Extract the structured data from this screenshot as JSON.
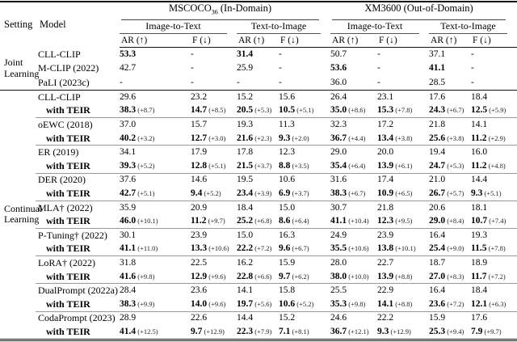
{
  "colors": {
    "text": "#000000",
    "rule_dark": "#111111",
    "separator_gray": "#9a9a9a"
  },
  "labels": {
    "with_teir": "with TEIR"
  },
  "header": {
    "setting": "Setting",
    "model": "Model",
    "groups": [
      {
        "name": "MSCOCO",
        "sub": "36",
        "rest": " (In-Domain)"
      },
      {
        "name": "XM3600",
        "sub": "",
        "rest": " (Out-of-Domain)"
      }
    ],
    "directions": [
      "Image-to-Text",
      "Text-to-Image",
      "Image-to-Text",
      "Text-to-Image"
    ],
    "metric_ar": "AR (↑)",
    "metric_f": "F (↓)"
  },
  "sections": [
    {
      "setting_lines": [
        "Joint",
        "Learning"
      ],
      "type": "simple",
      "rows": [
        {
          "model": "CLL-CLIP",
          "values": [
            "53.3",
            "-",
            "31.4",
            "-",
            "50.7",
            "-",
            "37.1",
            "-"
          ],
          "bold": [
            1,
            0,
            1,
            0,
            0,
            0,
            0,
            0
          ]
        },
        {
          "model": "M-CLIP (2022)",
          "values": [
            "42.7",
            "-",
            "25.9",
            "-",
            "53.6",
            "-",
            "41.1",
            "-"
          ],
          "bold": [
            0,
            0,
            0,
            0,
            1,
            0,
            1,
            0
          ]
        },
        {
          "model": "PaLI (2023c)",
          "values": [
            "-",
            "-",
            "-",
            "-",
            "36.0",
            "-",
            "28.5",
            "-"
          ],
          "bold": [
            0,
            0,
            0,
            0,
            0,
            0,
            0,
            0
          ]
        }
      ]
    },
    {
      "setting_lines": [
        "Continual",
        "Learning"
      ],
      "type": "pairs",
      "pairs": [
        {
          "model": "CLL-CLIP",
          "base": [
            "29.6",
            "23.2",
            "15.2",
            "15.6",
            "26.4",
            "23.1",
            "17.6",
            "18.4"
          ],
          "teir": [
            "38.3",
            "14.7",
            "20.5",
            "10.5",
            "35.0",
            "15.3",
            "24.3",
            "12.5"
          ],
          "delta": [
            "(+8.7)",
            "(+8.5)",
            "(+5.3)",
            "(+5.1)",
            "(+8.6)",
            "(+7.8)",
            "(+6.7)",
            "(+5.9)"
          ]
        },
        {
          "model": "oEWC (2018)",
          "base": [
            "37.0",
            "15.7",
            "19.3",
            "11.3",
            "32.3",
            "17.2",
            "21.8",
            "14.1"
          ],
          "teir": [
            "40.2",
            "12.7",
            "21.6",
            "9.3",
            "36.7",
            "13.4",
            "25.6",
            "11.2"
          ],
          "delta": [
            "(+3.2)",
            "(+3.0)",
            "(+2.3)",
            "(+2.0)",
            "(+4.4)",
            "(+3.8)",
            "(+3.8)",
            "(+2.9)"
          ]
        },
        {
          "model": "ER (2019)",
          "base": [
            "34.1",
            "17.9",
            "17.8",
            "12.3",
            "29.0",
            "20.0",
            "19.4",
            "16.0"
          ],
          "teir": [
            "39.3",
            "12.8",
            "21.5",
            "8.8",
            "35.4",
            "13.9",
            "24.7",
            "11.2"
          ],
          "delta": [
            "(+5.2)",
            "(+5.1)",
            "(+3.7)",
            "(+3.5)",
            "(+6.4)",
            "(+6.1)",
            "(+5.3)",
            "(+4.8)"
          ]
        },
        {
          "model": "DER (2020)",
          "base": [
            "37.6",
            "14.6",
            "19.5",
            "10.6",
            "31.6",
            "17.4",
            "21.0",
            "14.4"
          ],
          "teir": [
            "42.7",
            "9.4",
            "23.4",
            "6.9",
            "38.3",
            "10.9",
            "26.7",
            "9.3"
          ],
          "delta": [
            "(+5.1)",
            "(+5.2)",
            "(+3.9)",
            "(+3.7)",
            "(+6.7)",
            "(+6.5)",
            "(+5.7)",
            "(+5.1)"
          ]
        },
        {
          "model": "MLA† (2022)",
          "base": [
            "35.9",
            "20.9",
            "18.4",
            "15.0",
            "30.7",
            "21.8",
            "20.6",
            "18.1"
          ],
          "teir": [
            "46.0",
            "11.2",
            "25.2",
            "8.6",
            "41.1",
            "12.3",
            "29.0",
            "10.7"
          ],
          "delta": [
            "(+10.1)",
            "(+9.7)",
            "(+6.8)",
            "(+6.4)",
            "(+10.4)",
            "(+9.5)",
            "(+8.4)",
            "(+7.4)"
          ]
        },
        {
          "model": "P-Tuning† (2022)",
          "base": [
            "30.1",
            "23.9",
            "15.0",
            "16.3",
            "24.9",
            "23.9",
            "16.4",
            "19.3"
          ],
          "teir": [
            "41.1",
            "13.3",
            "22.2",
            "9.6",
            "35.5",
            "13.8",
            "25.4",
            "11.5"
          ],
          "delta": [
            "(+11.0)",
            "(+10.6)",
            "(+7.2)",
            "(+6.7)",
            "(+10.6)",
            "(+10.1)",
            "(+9.0)",
            "(+7.8)"
          ]
        },
        {
          "model": "LoRA† (2022)",
          "base": [
            "31.8",
            "22.5",
            "16.2",
            "15.9",
            "28.0",
            "22.7",
            "18.7",
            "18.9"
          ],
          "teir": [
            "41.6",
            "12.9",
            "22.8",
            "9.7",
            "38.0",
            "13.9",
            "27.0",
            "11.7"
          ],
          "delta": [
            "(+9.8)",
            "(+9.6)",
            "(+6.6)",
            "(+6.2)",
            "(+10.0)",
            "(+8.8)",
            "(+8.3)",
            "(+7.2)"
          ]
        },
        {
          "model": "DualPrompt (2022a)",
          "base": [
            "28.4",
            "23.6",
            "14.1",
            "15.8",
            "25.5",
            "22.9",
            "16.4",
            "18.4"
          ],
          "teir": [
            "38.3",
            "14.0",
            "19.7",
            "10.6",
            "35.3",
            "14.1",
            "23.6",
            "12.1"
          ],
          "delta": [
            "(+9.9)",
            "(+9.6)",
            "(+5.6)",
            "(+5.2)",
            "(+9.8)",
            "(+8.8)",
            "(+7.2)",
            "(+6.3)"
          ]
        },
        {
          "model": "CodaPrompt (2023)",
          "base": [
            "28.9",
            "22.6",
            "14.4",
            "15.2",
            "24.6",
            "22.2",
            "15.9",
            "17.6"
          ],
          "teir": [
            "41.4",
            "9.7",
            "22.3",
            "7.1",
            "36.7",
            "9.3",
            "25.3",
            "7.9"
          ],
          "delta": [
            "(+12.5)",
            "(+12.9)",
            "(+7.9)",
            "(+8.1)",
            "(+12.1)",
            "(+12.9)",
            "(+9.4)",
            "(+9.7)"
          ]
        }
      ]
    }
  ]
}
